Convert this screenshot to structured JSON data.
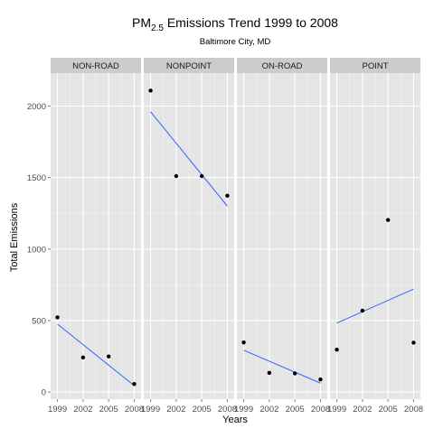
{
  "chart_data": {
    "type": "scatter",
    "title": {
      "prefix": "PM",
      "subscript": "2.5",
      "suffix": " Emissions Trend 1999 to 2008"
    },
    "subtitle": "Baltimore City, MD",
    "xlabel": "Years",
    "ylabel": "Total Emissions",
    "x_ticks": [
      1999,
      2002,
      2005,
      2008
    ],
    "x_tick_labels": [
      "1999",
      "2002",
      "2005",
      "2008"
    ],
    "xlim": [
      1998.2,
      2008.8
    ],
    "y_ticks": [
      0,
      500,
      1000,
      1500,
      2000
    ],
    "y_tick_labels": [
      "0",
      "500",
      "1000",
      "1500",
      "2000"
    ],
    "ylim": [
      -50,
      2230
    ],
    "grid": true,
    "trend_line_color": "#3366FF",
    "panels": [
      {
        "name": "NON-ROAD",
        "points": [
          [
            1999,
            522
          ],
          [
            2002,
            242
          ],
          [
            2005,
            249
          ],
          [
            2008,
            56
          ]
        ],
        "trend": [
          [
            1999,
            475
          ],
          [
            2008,
            45
          ]
        ]
      },
      {
        "name": "NONPOINT",
        "points": [
          [
            1999,
            2108
          ],
          [
            2002,
            1510
          ],
          [
            2005,
            1510
          ],
          [
            2008,
            1373
          ]
        ],
        "trend": [
          [
            1999,
            1960
          ],
          [
            2008,
            1300
          ]
        ]
      },
      {
        "name": "ON-ROAD",
        "points": [
          [
            1999,
            347
          ],
          [
            2002,
            134
          ],
          [
            2005,
            130
          ],
          [
            2008,
            88
          ]
        ],
        "trend": [
          [
            1999,
            292
          ],
          [
            2008,
            62
          ]
        ]
      },
      {
        "name": "POINT",
        "points": [
          [
            1999,
            296
          ],
          [
            2002,
            569
          ],
          [
            2005,
            1203
          ],
          [
            2008,
            345
          ]
        ],
        "trend": [
          [
            1999,
            482
          ],
          [
            2008,
            720
          ]
        ]
      }
    ]
  }
}
